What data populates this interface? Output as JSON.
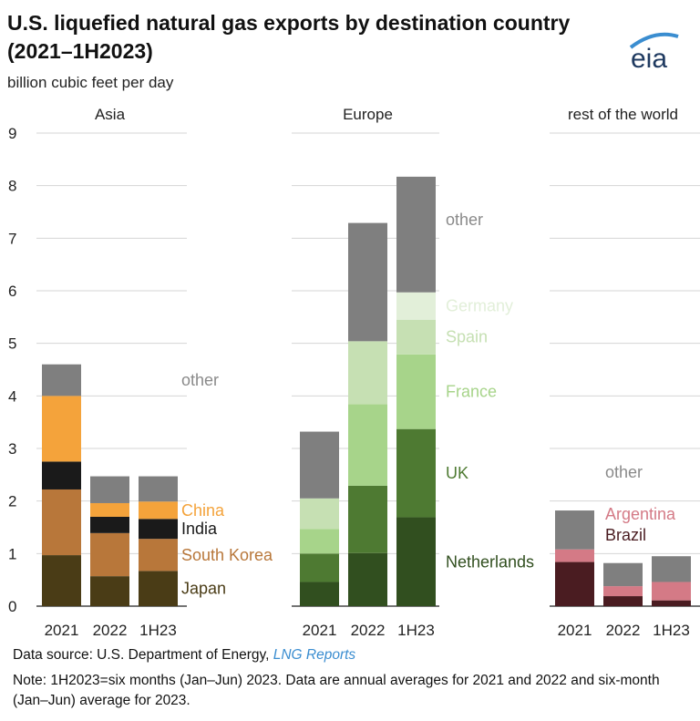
{
  "title": "U.S. liquefied natural gas exports by destination country (2021–1H2023)",
  "subtitle": "billion cubic feet per day",
  "logo_text": "eia",
  "footer": {
    "source_prefix": "Data source: U.S. Department of Energy, ",
    "source_link": "LNG Reports",
    "note": "Note: 1H2023=six months (Jan–Jun) 2023. Data are annual averages for 2021 and 2022 and six-month (Jan–Jun) average for 2023."
  },
  "colors": {
    "other": "#7f7f7f",
    "China": "#f4a33b",
    "India": "#1a1a1a",
    "South Korea": "#b8773a",
    "Japan": "#4a3c16",
    "Germany": "#e2efd9",
    "Spain": "#c6e0b3",
    "France": "#a7d48a",
    "UK": "#4e7a32",
    "Netherlands": "#314f1f",
    "Argentina": "#d47a86",
    "Brazil": "#4a1c21"
  },
  "chart_data": {
    "type": "bar",
    "stacked": true,
    "ylabel": "billion cubic feet per day",
    "ylim": [
      0,
      9
    ],
    "yticks": [
      0,
      1,
      2,
      3,
      4,
      5,
      6,
      7,
      8,
      9
    ],
    "grid": true,
    "categories": [
      "2021",
      "2022",
      "1H23"
    ],
    "panels": [
      {
        "name": "Asia",
        "series": [
          {
            "name": "Japan",
            "values": [
              0.97,
              0.57,
              0.67
            ]
          },
          {
            "name": "South Korea",
            "values": [
              1.25,
              0.82,
              0.61
            ]
          },
          {
            "name": "India",
            "values": [
              0.53,
              0.31,
              0.38
            ]
          },
          {
            "name": "China",
            "values": [
              1.25,
              0.26,
              0.33
            ]
          },
          {
            "name": "other",
            "values": [
              0.6,
              0.51,
              0.48
            ]
          }
        ]
      },
      {
        "name": "Europe",
        "series": [
          {
            "name": "Netherlands",
            "values": [
              0.46,
              1.01,
              1.69
            ]
          },
          {
            "name": "UK",
            "values": [
              0.54,
              1.28,
              1.68
            ]
          },
          {
            "name": "France",
            "values": [
              0.47,
              1.55,
              1.42
            ]
          },
          {
            "name": "Spain",
            "values": [
              0.58,
              1.2,
              0.66
            ]
          },
          {
            "name": "Germany",
            "values": [
              0,
              0,
              0.52
            ]
          },
          {
            "name": "other",
            "values": [
              1.27,
              2.25,
              2.2
            ]
          }
        ]
      },
      {
        "name": "rest of the world",
        "series": [
          {
            "name": "Brazil",
            "values": [
              0.84,
              0.19,
              0.11
            ]
          },
          {
            "name": "Argentina",
            "values": [
              0.24,
              0.19,
              0.35
            ]
          },
          {
            "name": "other",
            "values": [
              0.74,
              0.44,
              0.49
            ]
          }
        ]
      }
    ]
  }
}
